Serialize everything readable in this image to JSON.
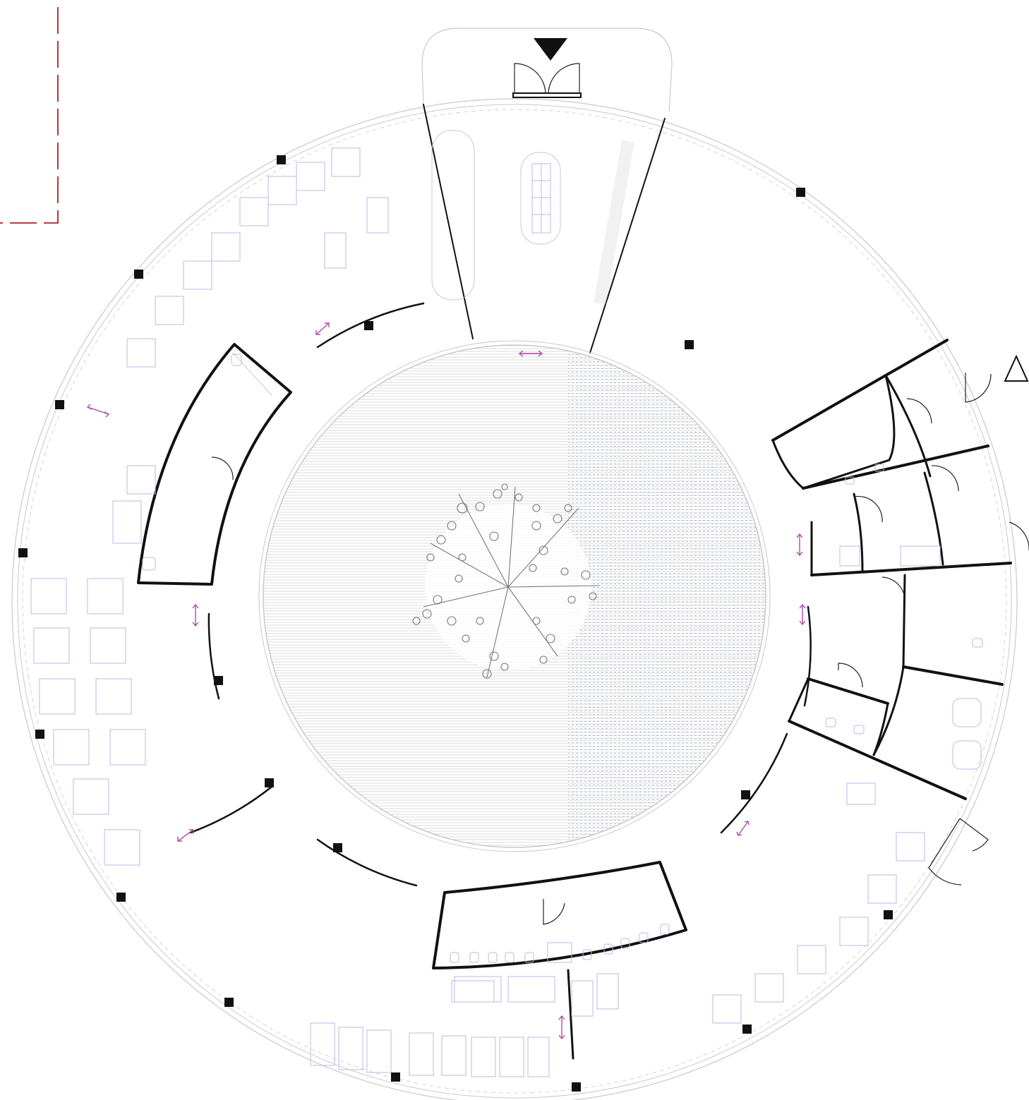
{
  "colors": {
    "wall": "#111111",
    "faint_line": "#c9c9c9",
    "furniture": "#b9b9e8",
    "arrow": "#b04aa6",
    "property_line": "#b02020",
    "courtyard_hatch": "#d2d2d2",
    "courtyard_hatch_blue": "#9fb8e8"
  },
  "icons": {
    "entrance_marker": "filled-triangle-down-icon",
    "secondary_entrance_marker": "outline-triangle-icon",
    "sliding_door_marker": "double-arrow-icon"
  }
}
